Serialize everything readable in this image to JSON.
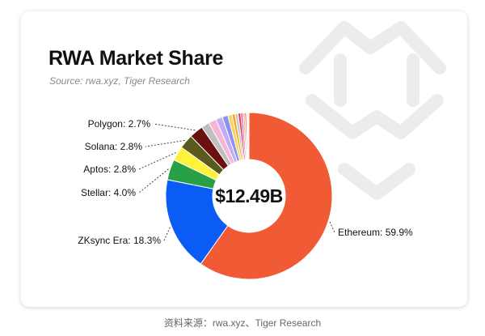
{
  "footer": {
    "source_caption": "资料来源：rwa.xyz、Tiger Research"
  },
  "chart_data": {
    "type": "donut",
    "title": "RWA Market Share",
    "subtitle": "Source: rwa.xyz, Tiger Research",
    "center_label": "$12.49B",
    "slices": [
      {
        "label": "Ethereum: 59.9%",
        "name": "Ethereum",
        "value": 59.9,
        "color": "#f05a35"
      },
      {
        "label": "ZKsync Era: 18.3%",
        "name": "ZKsync Era",
        "value": 18.3,
        "color": "#0a5cf5"
      },
      {
        "label": "Stellar: 4.0%",
        "name": "Stellar",
        "value": 4.0,
        "color": "#29a046"
      },
      {
        "label": "Aptos: 2.8%",
        "name": "Aptos",
        "value": 2.8,
        "color": "#fff23a"
      },
      {
        "label": "Solana: 2.8%",
        "name": "Solana",
        "value": 2.8,
        "color": "#5a5a1e"
      },
      {
        "label": "Polygon: 2.7%",
        "name": "Polygon",
        "value": 2.7,
        "color": "#6a1010"
      },
      {
        "value": 1.6,
        "color": "#bfbfbf"
      },
      {
        "value": 1.5,
        "color": "#f7b6d6"
      },
      {
        "value": 1.3,
        "color": "#c2adf5"
      },
      {
        "value": 1.1,
        "color": "#8b90f2"
      },
      {
        "value": 0.8,
        "color": "#f7d45e"
      },
      {
        "value": 0.6,
        "color": "#f5a623"
      },
      {
        "value": 0.6,
        "color": "#c9c9c9"
      },
      {
        "value": 0.5,
        "color": "#e0334c"
      },
      {
        "value": 0.4,
        "color": "#f04e8c"
      },
      {
        "value": 0.4,
        "color": "#f2b98a"
      },
      {
        "value": 0.3,
        "color": "#e94040"
      },
      {
        "value": 0.2,
        "color": "#cfa23a"
      },
      {
        "value": 0.2,
        "color": "#7ed6e0"
      },
      {
        "value": 0.1,
        "color": "#5c4f2a"
      }
    ]
  }
}
